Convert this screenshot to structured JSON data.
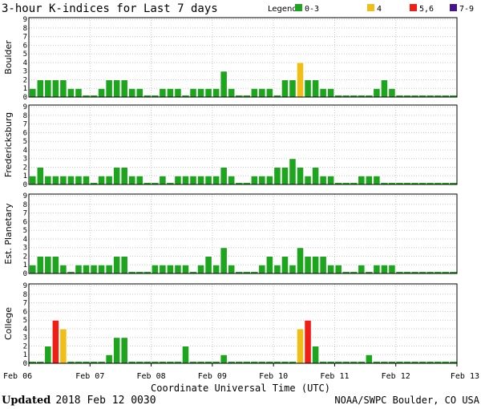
{
  "chart_data": {
    "type": "bar",
    "title": "3-hour K-indices for Last 7 days",
    "legend": {
      "label": "Legend:",
      "entries": [
        {
          "label": "0-3",
          "color": "#1ea51e"
        },
        {
          "label": "4",
          "color": "#f0be14"
        },
        {
          "label": "5,6",
          "color": "#f01e14"
        },
        {
          "label": "7-9",
          "color": "#46148c"
        }
      ]
    },
    "y_ticks": [
      "0",
      "1",
      "2",
      "3",
      "4",
      "5",
      "6",
      "7",
      "8",
      "9"
    ],
    "ylim": [
      0,
      9
    ],
    "x_ticks": [
      "Feb 06",
      "Feb 07",
      "Feb 08",
      "Feb 09",
      "Feb 10",
      "Feb 11",
      "Feb 12",
      "Feb 13"
    ],
    "xlabel": "Coordinate Universal Time (UTC)",
    "series": [
      {
        "name": "Boulder",
        "values": [
          1,
          2,
          2,
          2,
          2,
          1,
          1,
          0,
          0,
          1,
          2,
          2,
          2,
          1,
          1,
          0,
          0,
          1,
          1,
          1,
          0,
          1,
          1,
          1,
          1,
          3,
          1,
          0,
          0,
          1,
          1,
          1,
          0,
          2,
          2,
          4,
          2,
          2,
          1,
          1,
          0,
          0,
          0,
          0,
          0,
          1,
          2,
          1,
          0,
          0,
          0,
          0,
          0,
          0,
          0,
          0
        ]
      },
      {
        "name": "Fredericksburg",
        "values": [
          1,
          2,
          1,
          1,
          1,
          1,
          1,
          1,
          0,
          1,
          1,
          2,
          2,
          1,
          1,
          0,
          0,
          1,
          0,
          1,
          1,
          1,
          1,
          1,
          1,
          2,
          1,
          0,
          0,
          1,
          1,
          1,
          2,
          2,
          3,
          2,
          1,
          2,
          1,
          1,
          0,
          0,
          0,
          1,
          1,
          1,
          0,
          0,
          0,
          0,
          0,
          0,
          0,
          0,
          0,
          0
        ]
      },
      {
        "name": "Est. Planetary",
        "values": [
          1,
          2,
          2,
          2,
          1,
          0,
          1,
          1,
          1,
          1,
          1,
          2,
          2,
          0,
          0,
          0,
          1,
          1,
          1,
          1,
          1,
          0,
          1,
          2,
          1,
          3,
          1,
          0,
          0,
          0,
          1,
          2,
          1,
          2,
          1,
          3,
          2,
          2,
          2,
          1,
          1,
          0,
          0,
          1,
          0,
          1,
          1,
          1,
          0,
          0,
          0,
          0,
          0,
          0,
          0,
          0
        ]
      },
      {
        "name": "College",
        "values": [
          0,
          0,
          2,
          5,
          4,
          0,
          0,
          0,
          0,
          0,
          1,
          3,
          3,
          0,
          0,
          0,
          0,
          0,
          0,
          0,
          2,
          0,
          0,
          0,
          0,
          1,
          0,
          0,
          0,
          0,
          0,
          0,
          0,
          0,
          0,
          4,
          5,
          2,
          0,
          0,
          0,
          0,
          0,
          0,
          1,
          0,
          0,
          0,
          0,
          0,
          0,
          0,
          0,
          0,
          0,
          0
        ]
      }
    ],
    "grid": true
  },
  "footer": {
    "updated_label": "Updated",
    "updated_value": "2018 Feb 12 0030",
    "source": "NOAA/SWPC Boulder, CO USA"
  }
}
